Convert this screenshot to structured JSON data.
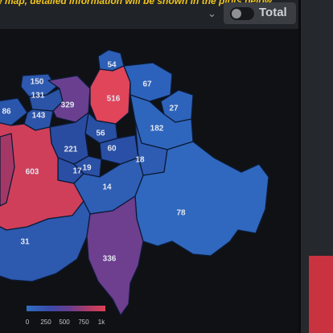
{
  "header": {
    "notice_text": "e map, detailed information will be shown in the plots below",
    "dropdown_icon": "chevron-down-icon",
    "toggle_label": "Total",
    "toggle_on": false
  },
  "colors": {
    "background": "#101114",
    "toolbar": "#202327",
    "notice": "#f0c419",
    "low": "#2f6fc4",
    "mid": "#6b3d8e",
    "high": "#e04156"
  },
  "map": {
    "regions": [
      {
        "value": "54"
      },
      {
        "value": "150"
      },
      {
        "value": "131"
      },
      {
        "value": "329"
      },
      {
        "value": "516"
      },
      {
        "value": "67"
      },
      {
        "value": "27"
      },
      {
        "value": "86"
      },
      {
        "value": "143"
      },
      {
        "value": "56"
      },
      {
        "value": "182"
      },
      {
        "value": "221"
      },
      {
        "value": "60"
      },
      {
        "value": "18"
      },
      {
        "value": "17"
      },
      {
        "value": "19"
      },
      {
        "value": "603"
      },
      {
        "value": "14"
      },
      {
        "value": "78"
      },
      {
        "value": "31"
      },
      {
        "value": "336"
      }
    ]
  },
  "legend": {
    "ticks": [
      "0",
      "250",
      "500",
      "750",
      "1k"
    ]
  }
}
